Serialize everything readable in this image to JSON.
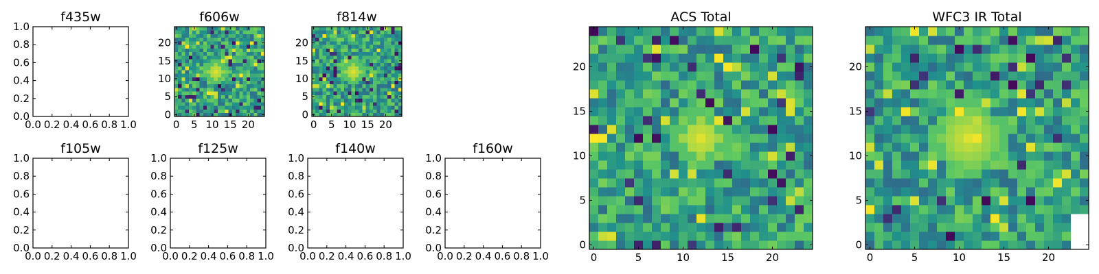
{
  "figure": {
    "description_free": true
  },
  "chart_data": [
    {
      "type": "empty",
      "title": "f435w",
      "xlim": [
        0,
        1
      ],
      "ylim": [
        0,
        1
      ],
      "xticks": [
        "0.0",
        "0.2",
        "0.4",
        "0.6",
        "0.8",
        "1.0"
      ],
      "yticks": [
        "0.0",
        "0.2",
        "0.4",
        "0.6",
        "0.8",
        "1.0"
      ]
    },
    {
      "type": "heatmap",
      "title": "f606w",
      "grid_size": 25,
      "hotspot": {
        "center": [
          11,
          12
        ],
        "radius": 2
      },
      "noise_seed": 606,
      "xticks": [
        "0",
        "5",
        "10",
        "15",
        "20"
      ],
      "yticks": [
        "0",
        "5",
        "10",
        "15",
        "20"
      ],
      "colormap": [
        "#440154",
        "#3b528b",
        "#21918c",
        "#5ec962",
        "#fde725"
      ]
    },
    {
      "type": "heatmap",
      "title": "f814w",
      "grid_size": 25,
      "hotspot": {
        "center": [
          11,
          12
        ],
        "radius": 2
      },
      "noise_seed": 814,
      "xticks": [
        "0",
        "5",
        "10",
        "15",
        "20"
      ],
      "yticks": [
        "0",
        "5",
        "10",
        "15",
        "20"
      ],
      "colormap": [
        "#440154",
        "#3b528b",
        "#21918c",
        "#5ec962",
        "#fde725"
      ]
    },
    {
      "type": "empty",
      "title": "f105w",
      "xlim": [
        0,
        1
      ],
      "ylim": [
        0,
        1
      ],
      "xticks": [
        "0.0",
        "0.2",
        "0.4",
        "0.6",
        "0.8",
        "1.0"
      ],
      "yticks": [
        "0.0",
        "0.2",
        "0.4",
        "0.6",
        "0.8",
        "1.0"
      ]
    },
    {
      "type": "empty",
      "title": "f125w",
      "xlim": [
        0,
        1
      ],
      "ylim": [
        0,
        1
      ],
      "xticks": [
        "0.0",
        "0.2",
        "0.4",
        "0.6",
        "0.8",
        "1.0"
      ],
      "yticks": [
        "0.0",
        "0.2",
        "0.4",
        "0.6",
        "0.8",
        "1.0"
      ]
    },
    {
      "type": "empty",
      "title": "f140w",
      "xlim": [
        0,
        1
      ],
      "ylim": [
        0,
        1
      ],
      "xticks": [
        "0.0",
        "0.2",
        "0.4",
        "0.6",
        "0.8",
        "1.0"
      ],
      "yticks": [
        "0.0",
        "0.2",
        "0.4",
        "0.6",
        "0.8",
        "1.0"
      ]
    },
    {
      "type": "empty",
      "title": "f160w",
      "xlim": [
        0,
        1
      ],
      "ylim": [
        0,
        1
      ],
      "xticks": [
        "0.0",
        "0.2",
        "0.4",
        "0.6",
        "0.8",
        "1.0"
      ],
      "yticks": [
        "0.0",
        "0.2",
        "0.4",
        "0.6",
        "0.8",
        "1.0"
      ]
    },
    {
      "type": "heatmap",
      "title": "ACS Total",
      "grid_size": 25,
      "hotspot": {
        "center": [
          12,
          12
        ],
        "radius": 2
      },
      "noise_seed": 1001,
      "xticks": [
        "0",
        "5",
        "10",
        "15",
        "20"
      ],
      "yticks": [
        "0",
        "5",
        "10",
        "15",
        "20"
      ],
      "colormap": [
        "#440154",
        "#3b528b",
        "#21918c",
        "#5ec962",
        "#fde725"
      ]
    },
    {
      "type": "heatmap",
      "title": "WFC3 IR Total",
      "grid_size": 25,
      "hotspot": {
        "center": [
          11,
          12
        ],
        "radius": 3
      },
      "noise_seed": 2002,
      "blank_region": {
        "x_from": 23,
        "y_to": 3
      },
      "xticks": [
        "0",
        "5",
        "10",
        "15",
        "20"
      ],
      "yticks": [
        "0",
        "5",
        "10",
        "15",
        "20"
      ],
      "colormap": [
        "#440154",
        "#3b528b",
        "#21918c",
        "#5ec962",
        "#fde725"
      ]
    }
  ]
}
